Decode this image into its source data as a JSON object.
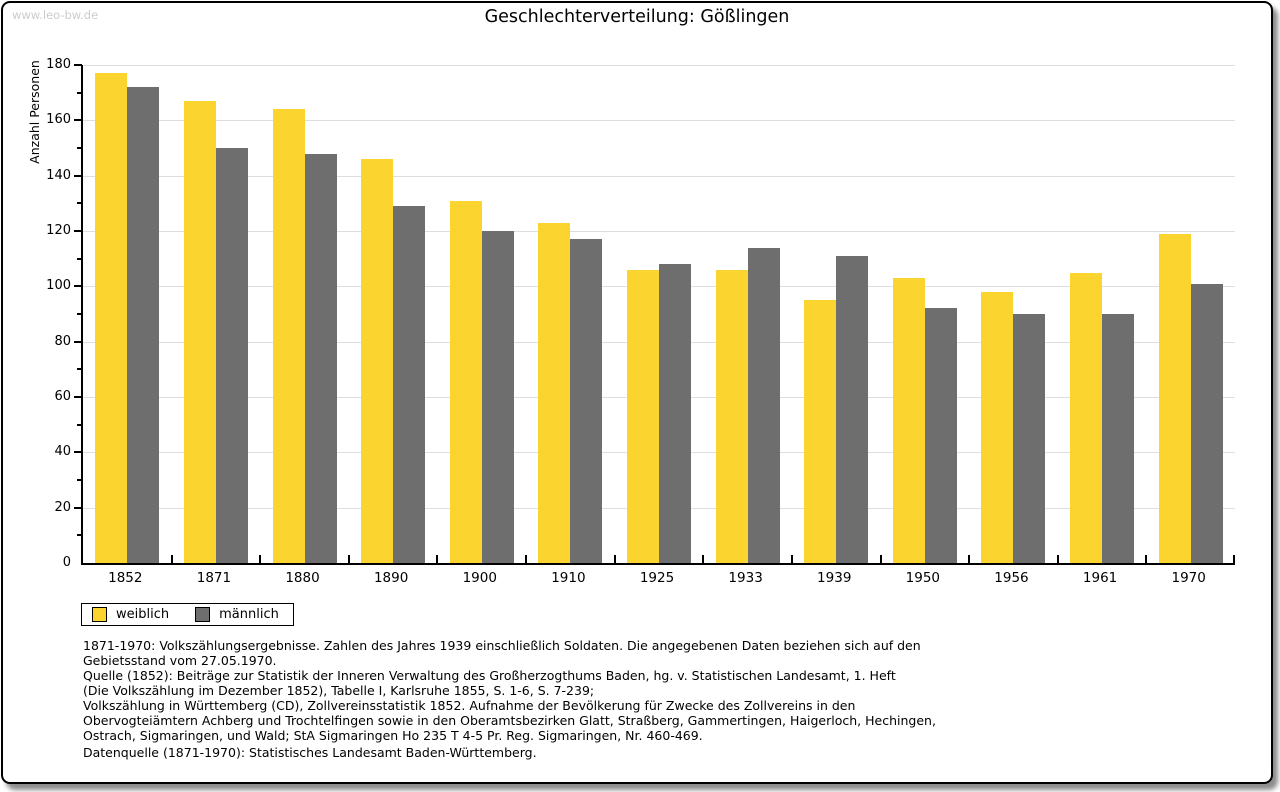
{
  "page": {
    "watermark": "www.leo-bw.de",
    "title": "Geschlechterverteilung: Gößlingen"
  },
  "chart_data": {
    "type": "bar",
    "title": "Geschlechterverteilung: Gößlingen",
    "xlabel": "",
    "ylabel": "Anzahl Personen",
    "ylim": [
      0,
      180
    ],
    "ytick_step": 20,
    "yminor_step": 10,
    "grid": true,
    "legend_position": "bottom-left",
    "categories": [
      "1852",
      "1871",
      "1880",
      "1890",
      "1900",
      "1910",
      "1925",
      "1933",
      "1939",
      "1950",
      "1956",
      "1961",
      "1970"
    ],
    "series": [
      {
        "name": "weiblich",
        "color": "#FCD42F",
        "values": [
          177,
          167,
          164,
          146,
          131,
          123,
          106,
          106,
          95,
          103,
          98,
          105,
          119
        ]
      },
      {
        "name": "männlich",
        "color": "#6E6E6E",
        "values": [
          172,
          150,
          148,
          129,
          120,
          117,
          108,
          114,
          111,
          92,
          90,
          90,
          101
        ]
      }
    ]
  },
  "footnotes": {
    "lines": [
      "1871-1970: Volkszählungsergebnisse. Zahlen des Jahres 1939 einschließlich Soldaten. Die angegebenen Daten beziehen sich auf den",
      "Gebietsstand vom 27.05.1970.",
      "Quelle (1852): Beiträge zur Statistik der Inneren Verwaltung des Großherzogthums Baden, hg. v. Statistischen Landesamt, 1. Heft",
      "(Die Volkszählung im Dezember 1852), Tabelle I, Karlsruhe 1855, S. 1-6, S. 7-239;",
      "Volkszählung in Württemberg (CD), Zollvereinsstatistik 1852. Aufnahme der Bevölkerung für Zwecke des Zollvereins in den",
      "Obervogteiämtern Achberg und Trochtelfingen sowie in den Oberamtsbezirken Glatt, Straßberg, Gammertingen, Haigerloch, Hechingen,",
      "Ostrach, Sigmaringen, und Wald; StA Sigmaringen Ho 235 T 4-5 Pr. Reg. Sigmaringen, Nr. 460-469."
    ],
    "source_line": "Datenquelle (1871-1970): Statistisches Landesamt Baden-Württemberg."
  }
}
